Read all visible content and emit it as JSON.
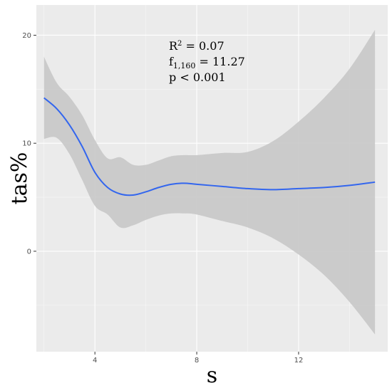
{
  "chart_data": {
    "type": "line",
    "title": "",
    "xlabel": "s",
    "ylabel": "tas%",
    "xlim": [
      1.7,
      15.5
    ],
    "ylim": [
      -9.3,
      22.8
    ],
    "x_ticks": [
      4,
      8,
      12
    ],
    "x_tick_labels": [
      "4",
      "8",
      "12"
    ],
    "y_ticks": [
      0,
      10,
      20
    ],
    "y_tick_labels": [
      "0",
      "10",
      "20"
    ],
    "grid": true,
    "legend": "none",
    "colors": {
      "panel": "#ebebeb",
      "grid_major": "#ffffff",
      "ribbon": "#c8c8c8",
      "line": "#3366ee"
    },
    "series": [
      {
        "type": "smooth_fit_with_confidence_band",
        "x": [
          2.0,
          2.5,
          3.0,
          3.5,
          4.0,
          4.5,
          5.0,
          5.5,
          6.0,
          6.5,
          7.0,
          7.5,
          8.0,
          9.0,
          10.0,
          11.0,
          12.0,
          13.0,
          14.0,
          15.0
        ],
        "y": [
          14.2,
          13.2,
          11.7,
          9.7,
          7.3,
          5.9,
          5.3,
          5.2,
          5.5,
          5.9,
          6.2,
          6.3,
          6.2,
          6.0,
          5.8,
          5.7,
          5.8,
          5.9,
          6.1,
          6.4
        ],
        "lower": [
          10.4,
          10.5,
          9.0,
          6.6,
          4.2,
          3.4,
          2.2,
          2.4,
          2.9,
          3.3,
          3.5,
          3.5,
          3.4,
          2.8,
          2.2,
          1.2,
          -0.3,
          -2.2,
          -4.7,
          -7.7
        ],
        "upper": [
          18.0,
          15.6,
          14.3,
          12.6,
          10.3,
          8.6,
          8.7,
          8.0,
          8.0,
          8.4,
          8.8,
          8.9,
          8.9,
          9.1,
          9.2,
          10.2,
          12.0,
          14.2,
          16.9,
          20.5
        ]
      }
    ],
    "annotations": {
      "r2": {
        "base": "R",
        "sup": "2",
        "rest": " = 0.07"
      },
      "f": {
        "base": "f",
        "sub": "1,160",
        "rest": " = 11.27"
      },
      "p": {
        "text": "p < 0.001"
      }
    }
  }
}
